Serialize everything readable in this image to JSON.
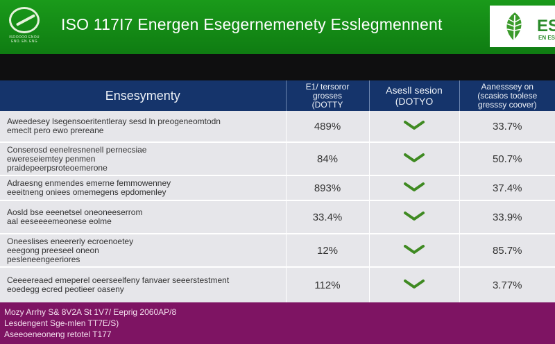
{
  "header": {
    "title": "ISO 117I7  Energen Esegernemenety Esslegmennent",
    "left_logo_sub": [
      "ISOOOOO ENOU",
      "ENO. EN. ENG"
    ],
    "right_logo_mark": "ES",
    "right_logo_sub": "EN ES"
  },
  "table": {
    "headers": {
      "item": "Ensesymenty",
      "col1": [
        "E1/ tersoror",
        "grosses",
        "(DOTTY"
      ],
      "col2": [
        "Asesll sesion",
        "(DOTYO"
      ],
      "col3": [
        "Aanesssey on",
        "(scasios toolese",
        "gresssy coover)"
      ]
    },
    "rows": [
      {
        "desc": [
          "Aweedesey lsegensoeritentleray sesd  ln preogeneomtodn",
          "emeclt pero ewo prereane"
        ],
        "v1": "489%",
        "check": "passed",
        "v2": "33.7%"
      },
      {
        "desc": [
          "Conserosd eenelresnenell pernecsiae",
          "ewereseiemtey penmen",
          "praidepeerpsroteoemerone"
        ],
        "v1": "84%",
        "check": "passed",
        "v2": "50.7%"
      },
      {
        "desc": [
          "Adraesng enmendes emerne femmowenney",
          "eeeitneng oniees omemegens epdomenley"
        ],
        "v1": "893%",
        "check": "passed",
        "v2": "37.4%"
      },
      {
        "desc": [
          "Aosld bse eeenetsel oneoneeserrom",
          "aal eeseeeemeonese  eolme"
        ],
        "v1": "33.4%",
        "check": "passed",
        "v2": "33.9%"
      },
      {
        "desc": [
          "Oneeslises eneererly ecroenoetey",
          "eeegong preeseel oneon",
          "pesleneengeeriores"
        ],
        "v1": "12%",
        "check": "passed",
        "v2": "85.7%"
      },
      {
        "desc": [
          "Ceeeereaed emeperel oeerseelfeny fanvaer seeerstestment",
          "eoedegg ecred peotieer oaseny"
        ],
        "v1": "112%",
        "check": "passed",
        "v2": "3.77%"
      }
    ]
  },
  "footer": {
    "lines": [
      "Mozy Arrhy S& 8V2A St 1V7/ Eeprig 2060AP/8",
      "Lesdengent  Sge-mlen TT7E/S)",
      "Aseeoeneoneng retotel T177"
    ]
  },
  "colors": {
    "banner_green": "#139016",
    "header_navy": "#15346b",
    "footer_purple": "#7e1463",
    "check_green": "#3f8a22"
  }
}
